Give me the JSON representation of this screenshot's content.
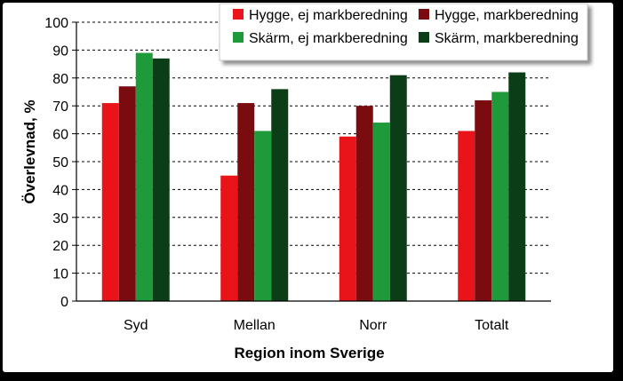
{
  "chart_data": {
    "type": "bar",
    "title": "",
    "xlabel": "Region inom Sverige",
    "ylabel": "Överlevnad, %",
    "ylim": [
      0,
      100
    ],
    "yticks": [
      0,
      10,
      20,
      30,
      40,
      50,
      60,
      70,
      80,
      90,
      100
    ],
    "grid": true,
    "legend_position": "top-right",
    "categories": [
      "Syd",
      "Mellan",
      "Norr",
      "Totalt"
    ],
    "series": [
      {
        "name": "Hygge, ej markberedning",
        "color": "#e8141a",
        "values": [
          71,
          45,
          59,
          61
        ]
      },
      {
        "name": "Hygge, markberedning",
        "color": "#7a0c10",
        "values": [
          77,
          71,
          70,
          72
        ]
      },
      {
        "name": "Skärm, ej markberedning",
        "color": "#1f9a3a",
        "values": [
          89,
          61,
          64,
          75
        ]
      },
      {
        "name": "Skärm, markberedning",
        "color": "#0b3d17",
        "values": [
          87,
          76,
          81,
          82
        ]
      }
    ]
  }
}
